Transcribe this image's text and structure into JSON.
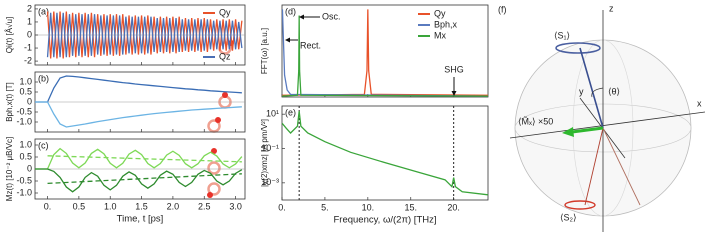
{
  "chart_data": [
    {
      "type": "line",
      "title": "(a)",
      "ylabel": "Qi(t) [Å√u]",
      "xlim": [
        -0.2,
        3.15
      ],
      "ylim": [
        -2.3,
        2.3
      ],
      "yticks": [
        -2,
        -1,
        0,
        1,
        2
      ],
      "xticks": [
        {
          "value": 0,
          "label": "0."
        },
        0.5,
        {
          "value": 1,
          "label": "1.0"
        },
        1.5,
        {
          "value": 2,
          "label": "2.0"
        },
        2.5,
        {
          "value": 3,
          "label": "3.0"
        }
      ],
      "xtick_labels": false,
      "legend": "right",
      "x": [
        0,
        0.05,
        0.1,
        0.15,
        0.2,
        0.25,
        0.3,
        0.35,
        0.4,
        0.45,
        0.5,
        0.55,
        0.6,
        0.65,
        0.7,
        0.75,
        0.8,
        0.85,
        0.9,
        0.95,
        1,
        1.05,
        1.1,
        1.15,
        1.2,
        1.25,
        1.3,
        1.35,
        1.4,
        1.45,
        1.5,
        1.55,
        1.6,
        1.65,
        1.7,
        1.75,
        1.8,
        1.85,
        1.9,
        1.95,
        2,
        2.05,
        2.1,
        2.15,
        2.2,
        2.25,
        2.3,
        2.35,
        2.4,
        2.45,
        2.5,
        2.55,
        2.6,
        2.65,
        2.7,
        2.75,
        2.8,
        2.85,
        2.9,
        2.95,
        3,
        3.05,
        3.1
      ],
      "series": [
        {
          "name": "Qy",
          "color": "#e8522a",
          "values": [
            1.8,
            -1.8,
            1.8,
            -1.8,
            1.8,
            -1.8,
            1.8,
            -1.7,
            1.7,
            -1.7,
            1.7,
            -1.7,
            1.7,
            -1.7,
            1.7,
            -1.7,
            1.6,
            -1.6,
            1.6,
            -1.6,
            1.6,
            -1.6,
            1.6,
            -1.6,
            1.6,
            -1.5,
            1.5,
            -1.5,
            1.5,
            -1.5,
            1.5,
            -1.5,
            1.5,
            -1.5,
            1.4,
            -1.4,
            1.4,
            -1.4,
            1.4,
            -1.4,
            1.4,
            -1.4,
            1.4,
            -1.3,
            1.3,
            -1.3,
            1.3,
            -1.3,
            1.3,
            -1.3,
            1.3,
            -1.3,
            1.2,
            -1.2,
            1.2,
            -1.2,
            1.2,
            -1.2,
            1.2,
            -1.2,
            1.2,
            -1.1,
            1.1
          ]
        },
        {
          "name": "Qz",
          "color": "#4a6fb5",
          "values": [
            -1.7,
            1.7,
            -1.7,
            1.7,
            -1.7,
            1.7,
            -1.7,
            1.6,
            -1.6,
            1.6,
            -1.6,
            1.6,
            -1.6,
            1.6,
            -1.6,
            1.6,
            -1.5,
            1.5,
            -1.5,
            1.5,
            -1.5,
            1.5,
            -1.5,
            1.5,
            -1.5,
            1.4,
            -1.4,
            1.4,
            -1.4,
            1.4,
            -1.4,
            1.4,
            -1.4,
            1.4,
            -1.3,
            1.3,
            -1.3,
            1.3,
            -1.3,
            1.3,
            -1.3,
            1.3,
            -1.3,
            1.2,
            -1.2,
            1.2,
            -1.2,
            1.2,
            -1.2,
            1.2,
            -1.2,
            1.2,
            -1.1,
            1.1,
            -1.1,
            1.1,
            -1.1,
            1.1,
            -1.1,
            1.1,
            -1.1,
            1.0,
            -1.0
          ]
        }
      ]
    },
    {
      "type": "line",
      "title": "(b)",
      "ylabel": "Bph,x(t) [T]",
      "xlim": [
        -0.2,
        3.15
      ],
      "ylim": [
        -1.5,
        1.5
      ],
      "yticks": [
        {
          "value": -1,
          "label": "-1.0"
        },
        -0.5,
        0,
        0.5,
        {
          "value": 1,
          "label": "1.0"
        }
      ],
      "xticks": [
        {
          "value": 0,
          "label": "0."
        },
        0.5,
        {
          "value": 1,
          "label": "1.0"
        },
        1.5,
        {
          "value": 2,
          "label": "2.0"
        },
        2.5,
        {
          "value": 3,
          "label": "3.0"
        }
      ],
      "xtick_labels": false,
      "x": [
        -0.2,
        -0.1,
        0,
        0.1,
        0.2,
        0.3,
        0.4,
        0.5,
        0.6,
        0.7,
        0.8,
        0.9,
        1,
        1.1,
        1.2,
        1.3,
        1.4,
        1.5,
        1.6,
        1.7,
        1.8,
        1.9,
        2,
        2.1,
        2.2,
        2.3,
        2.4,
        2.5,
        2.6,
        2.7,
        2.8,
        2.9,
        3,
        3.1
      ],
      "series": [
        {
          "color": "#3a6db5",
          "values": [
            0,
            0,
            0,
            0.7,
            1.2,
            1.3,
            1.28,
            1.25,
            1.21,
            1.17,
            1.13,
            1.09,
            1.05,
            1.01,
            0.97,
            0.94,
            0.9,
            0.87,
            0.84,
            0.81,
            0.78,
            0.75,
            0.72,
            0.69,
            0.66,
            0.64,
            0.61,
            0.59,
            0.56,
            0.54,
            0.52,
            0.5,
            0.48,
            0.46
          ]
        },
        {
          "color": "#6cb4e4",
          "values": [
            0,
            0,
            0,
            -0.6,
            -1.1,
            -1.25,
            -1.2,
            -1.15,
            -1.1,
            -1.04,
            -0.98,
            -0.93,
            -0.88,
            -0.83,
            -0.78,
            -0.74,
            -0.7,
            -0.66,
            -0.62,
            -0.58,
            -0.55,
            -0.52,
            -0.49,
            -0.46,
            -0.43,
            -0.4,
            -0.38,
            -0.36,
            -0.34,
            -0.32,
            -0.3,
            -0.28,
            -0.26,
            -0.24
          ]
        }
      ]
    },
    {
      "type": "line",
      "title": "(c)",
      "ylabel": "Mz(t) [10⁻² μB/Vc]",
      "xlabel": "Time, t [ps]",
      "xlim": [
        -0.2,
        3.15
      ],
      "ylim": [
        -1.25,
        1.25
      ],
      "yticks": [
        {
          "value": -1,
          "label": "-1.0"
        },
        -0.5,
        0,
        0.5,
        {
          "value": 1,
          "label": "1.0"
        }
      ],
      "xticks": [
        {
          "value": 0,
          "label": "0."
        },
        0.5,
        {
          "value": 1,
          "label": "1.0"
        },
        1.5,
        {
          "value": 2,
          "label": "2.0"
        },
        2.5,
        {
          "value": 3,
          "label": "3.0"
        }
      ],
      "x": [
        -0.2,
        -0.1,
        0,
        0.1,
        0.2,
        0.3,
        0.4,
        0.5,
        0.6,
        0.7,
        0.8,
        0.9,
        1,
        1.1,
        1.2,
        1.3,
        1.4,
        1.5,
        1.6,
        1.7,
        1.8,
        1.9,
        2,
        2.1,
        2.2,
        2.3,
        2.4,
        2.5,
        2.6,
        2.7,
        2.8,
        2.9,
        3,
        3.1
      ],
      "series": [
        {
          "color": "#7ed957",
          "values": [
            0,
            0,
            0,
            0.6,
            0.85,
            0.65,
            0.25,
            0.05,
            0.25,
            0.65,
            0.82,
            0.63,
            0.24,
            0.05,
            0.24,
            0.62,
            0.78,
            0.6,
            0.23,
            0.05,
            0.23,
            0.58,
            0.74,
            0.57,
            0.22,
            0.05,
            0.22,
            0.55,
            0.7,
            0.54,
            0.21,
            0.05,
            0.21,
            0.52
          ]
        },
        {
          "color": "#2e8b2e",
          "values": [
            0,
            0,
            0,
            -0.1,
            -0.35,
            -0.75,
            -0.95,
            -0.75,
            -0.35,
            -0.15,
            -0.3,
            -0.68,
            -0.87,
            -0.68,
            -0.3,
            -0.12,
            -0.26,
            -0.62,
            -0.8,
            -0.62,
            -0.26,
            -0.09,
            -0.22,
            -0.56,
            -0.73,
            -0.56,
            -0.22,
            -0.06,
            -0.18,
            -0.5,
            -0.66,
            -0.5,
            -0.18,
            -0.03
          ]
        },
        {
          "color": "#7ed957",
          "dashed": true,
          "x": [
            0,
            3.1
          ],
          "values": [
            0.55,
            0.3
          ]
        },
        {
          "color": "#2e8b2e",
          "dashed": true,
          "x": [
            0,
            3.1
          ],
          "values": [
            -0.6,
            -0.2
          ]
        }
      ]
    },
    {
      "type": "line",
      "title": "(d)",
      "ylabel": "FFT(ω) [a.u.]",
      "xlim": [
        0,
        24
      ],
      "ylim": [
        0,
        1.05
      ],
      "xticks": [
        0,
        5,
        10,
        15,
        20
      ],
      "xtick_labels": false,
      "legend": "top-right",
      "annotations": [
        "Osc.",
        "Rect.",
        "SHG"
      ],
      "series": [
        {
          "name": "Qy",
          "color": "#e8522a",
          "x": [
            0,
            9.6,
            9.9,
            10,
            10.1,
            10.4,
            24
          ],
          "values": [
            0.02,
            0.03,
            0.3,
            1.0,
            0.3,
            0.03,
            0.02
          ]
        },
        {
          "name": "Bph,x",
          "color": "#5a7bbf",
          "x": [
            0,
            0.05,
            0.15,
            0.3,
            0.6,
            1,
            24
          ],
          "values": [
            0.98,
            1.0,
            0.7,
            0.25,
            0.08,
            0.03,
            0.01
          ]
        },
        {
          "name": "Mx",
          "color": "#3aa53a",
          "x": [
            0,
            1.8,
            1.95,
            2,
            2.05,
            2.2,
            24
          ],
          "values": [
            0.01,
            0.02,
            0.3,
            0.93,
            0.3,
            0.02,
            0.01
          ]
        }
      ]
    },
    {
      "type": "line",
      "title": "(e)",
      "ylabel": "|χ(2)xmz| [A pm/V²]",
      "xlabel": "Frequency, ω/(2π) [THz]",
      "xlim": [
        0,
        24
      ],
      "ylim": [
        0.0001,
        30
      ],
      "log_y": true,
      "yticks": [
        {
          "value": 0.001,
          "label": "10⁻³"
        },
        {
          "value": 0.1,
          "label": "10⁻¹"
        },
        {
          "value": 10,
          "label": "10¹"
        }
      ],
      "xticks": [
        {
          "value": 0,
          "label": "0."
        },
        {
          "value": 5,
          "label": "5."
        },
        {
          "value": 10,
          "label": "10."
        },
        {
          "value": 15,
          "label": "15."
        },
        {
          "value": 20,
          "label": "20."
        }
      ],
      "vlines": [
        2,
        20
      ],
      "series": [
        {
          "color": "#3aa53a",
          "x": [
            0,
            0.5,
            1,
            1.8,
            2,
            2.2,
            3,
            5,
            8,
            12,
            16,
            19,
            19.8,
            20,
            20.2,
            21,
            24
          ],
          "values": [
            3,
            1.5,
            0.8,
            2,
            15,
            2,
            0.8,
            0.25,
            0.06,
            0.015,
            0.004,
            0.0015,
            0.0006,
            0.002,
            0.0006,
            0.0003,
            0.0002
          ]
        }
      ]
    }
  ],
  "diagram": {
    "label": "(f)",
    "z_axis": "z",
    "x_axis": "x",
    "y_axis": "y",
    "s1": "⟨S₁⟩",
    "s2": "⟨S₂⟩",
    "theta": "⟨θ⟩",
    "m": "⟨M̃ₓ⟩ ×50"
  }
}
